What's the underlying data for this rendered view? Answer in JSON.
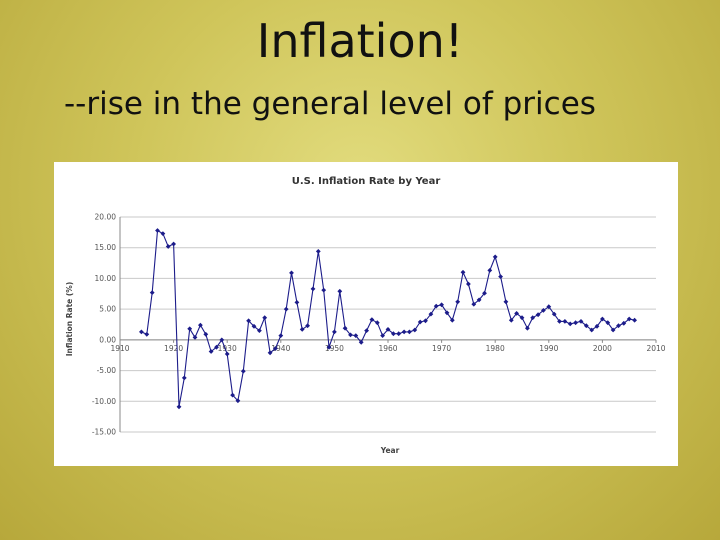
{
  "slide": {
    "title": "Inflation!",
    "subtitle": "--rise in the general level of prices"
  },
  "colors": {
    "series": "#1c1c8a",
    "background": "#cfc55a",
    "plot_background": "#ffffff"
  },
  "chart_data": {
    "type": "line",
    "title": "U.S. Inflation Rate by Year",
    "xlabel": "Year",
    "ylabel": "Inflation Rate (%)",
    "xlim": [
      1910,
      2010
    ],
    "ylim": [
      -15,
      20
    ],
    "x_ticks": [
      "1910",
      "1920",
      "1930",
      "1940",
      "1950",
      "1960",
      "1970",
      "1980",
      "1990",
      "2000",
      "2010"
    ],
    "y_ticks": [
      "20.00",
      "15.00",
      "10.00",
      "5.00",
      "0.00",
      "-5.00",
      "-10.00",
      "-15.00"
    ],
    "grid": true,
    "legend": "none",
    "markers": true,
    "series": [
      {
        "x": [
          1914,
          1915,
          1916,
          1917,
          1918,
          1919,
          1920,
          1921,
          1922,
          1923,
          1924,
          1925,
          1926,
          1927,
          1928,
          1929,
          1930,
          1931,
          1932,
          1933,
          1934,
          1935,
          1936,
          1937,
          1938,
          1939,
          1940,
          1941,
          1942,
          1943,
          1944,
          1945,
          1946,
          1947,
          1948,
          1949,
          1950,
          1951,
          1952,
          1953,
          1954,
          1955,
          1956,
          1957,
          1958,
          1959,
          1960,
          1961,
          1962,
          1963,
          1964,
          1965,
          1966,
          1967,
          1968,
          1969,
          1970,
          1971,
          1972,
          1973,
          1974,
          1975,
          1976,
          1977,
          1978,
          1979,
          1980,
          1981,
          1982,
          1983,
          1984,
          1985,
          1986,
          1987,
          1988,
          1989,
          1990,
          1991,
          1992,
          1993,
          1994,
          1995,
          1996,
          1997,
          1998,
          1999,
          2000,
          2001,
          2002,
          2003,
          2004,
          2005,
          2006
        ],
        "values": [
          1.3,
          0.9,
          7.7,
          17.8,
          17.3,
          15.2,
          15.6,
          -10.9,
          -6.2,
          1.8,
          0.4,
          2.4,
          0.9,
          -1.9,
          -1.2,
          0.0,
          -2.3,
          -9.0,
          -9.9,
          -5.1,
          3.1,
          2.2,
          1.5,
          3.6,
          -2.1,
          -1.4,
          0.7,
          5.0,
          10.9,
          6.1,
          1.7,
          2.3,
          8.3,
          14.4,
          8.1,
          -1.2,
          1.3,
          7.9,
          1.9,
          0.8,
          0.7,
          -0.4,
          1.5,
          3.3,
          2.8,
          0.7,
          1.7,
          1.0,
          1.0,
          1.3,
          1.3,
          1.6,
          2.9,
          3.1,
          4.2,
          5.5,
          5.7,
          4.4,
          3.2,
          6.2,
          11.0,
          9.1,
          5.8,
          6.5,
          7.6,
          11.3,
          13.5,
          10.3,
          6.2,
          3.2,
          4.3,
          3.6,
          1.9,
          3.6,
          4.1,
          4.8,
          5.4,
          4.2,
          3.0,
          3.0,
          2.6,
          2.8,
          3.0,
          2.3,
          1.6,
          2.2,
          3.4,
          2.8,
          1.6,
          2.3,
          2.7,
          3.4,
          3.2
        ]
      }
    ]
  }
}
